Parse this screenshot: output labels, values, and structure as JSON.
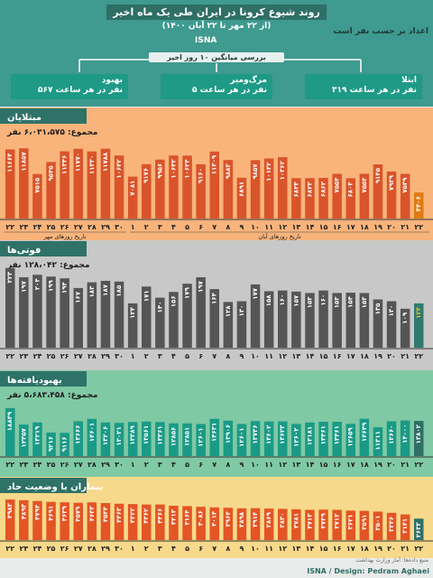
{
  "header": {
    "title": "روند شیوع کرونا در ایران طی یک ماه اخیر",
    "subtitle": "(از ۲۲ مهر تا ۲۲ آبان ۱۴۰۰)",
    "logo": "ISNA",
    "note": "اعداد بر حسب نفر است",
    "avg_label": "بررسی میانگین ۱۰ روز اخیر",
    "colors": {
      "header": "#3f9a8f",
      "title_band": "#2f6f66"
    }
  },
  "averages": [
    {
      "title": "بهبود",
      "value": "۵۶۷ نفر در هر ساعت",
      "color": "#1e9a86"
    },
    {
      "title": "مرگ‌ومیر",
      "value": "۵ نفر در هر ساعت",
      "color": "#1e9a86"
    },
    {
      "title": "ابتلا",
      "value": "۳۱۹ نفر در هر ساعت",
      "color": "#1e9a86"
    }
  ],
  "x_axis": {
    "labels": [
      "۲۲",
      "۲۳",
      "۲۴",
      "۲۵",
      "۲۶",
      "۲۷",
      "۲۸",
      "۲۹",
      "۳۰",
      "۱",
      "۲",
      "۳",
      "۴",
      "۵",
      "۶",
      "۷",
      "۸",
      "۹",
      "۱۰",
      "۱۱",
      "۱۲",
      "۱۳",
      "۱۴",
      "۱۵",
      "۱۶",
      "۱۷",
      "۱۸",
      "۱۹",
      "۲۰",
      "۲۱",
      "۲۲"
    ],
    "mehr_label": "تاریخ روزهای مهر",
    "aban_label": "تاریخ روزهای آبان"
  },
  "chart_data": [
    {
      "type": "bar",
      "title": "مبتلایان",
      "total": "مجموع: ۶،۰۳۱،۵۷۵ نفر",
      "bar_color": "#d9542a",
      "last_bar_color": "#e07b12",
      "bg_color": "#f9b47c",
      "title_color": "#2e7268",
      "categories": [
        "۲۲ مهر",
        "۲۳ مهر",
        "۲۴ مهر",
        "۲۵ مهر",
        "۲۶ مهر",
        "۲۷ مهر",
        "۲۸ مهر",
        "۲۹ مهر",
        "۳۰ مهر",
        "۱ آبان",
        "۲ آبان",
        "۳ آبان",
        "۴ آبان",
        "۵ آبان",
        "۶ آبان",
        "۷ آبان",
        "۸ آبان",
        "۹ آبان",
        "۱۰ آبان",
        "۱۱ آبان",
        "۱۲ آبان",
        "۱۳ آبان",
        "۱۴ آبان",
        "۱۵ آبان",
        "۱۶ آبان",
        "۱۷ آبان",
        "۱۸ آبان",
        "۱۹ آبان",
        "۲۰ آبان",
        "۲۱ آبان",
        "۲۲ آبان"
      ],
      "values": [
        11664,
        11857,
        7515,
        9545,
        11346,
        11770,
        11330,
        11788,
        10642,
        7081,
        9176,
        9956,
        10642,
        10624,
        9160,
        11309,
        9883,
        6891,
        9857,
        10142,
        10362,
        6823,
        6823,
        6862,
        7554,
        6803,
        7554,
        9145,
        7939,
        7539,
        4406
      ],
      "labels": [
        "۱۱۶۶۴",
        "۱۱۸۵۷",
        "۷۵۱۵",
        "۹۵۴۵",
        "۱۱۳۴۶",
        "۱۱۷۷۰",
        "۱۱۳۳۰",
        "۱۱۷۸۸",
        "۱۰۶۴۲",
        "۷۰۸۱",
        "۹۱۷۶",
        "۹۹۵۶",
        "۱۰۶۴۲",
        "۱۰۶۲۴",
        "۹۱۶۰",
        "۱۱۳۰۹",
        "۹۸۸۳",
        "۶۸۹۱",
        "۹۸۵۷",
        "۱۰۱۴۲",
        "۱۰۳۶۲",
        "۶۸۲۳",
        "۶۸۲۳",
        "۶۸۶۲",
        "۷۵۵۴",
        "۶۸۰۳",
        "۷۵۵۴",
        "۹۱۴۵",
        "۷۹۳۹",
        "۷۵۳۹",
        "۴۴۰۶"
      ],
      "ylim": [
        0,
        12500
      ]
    },
    {
      "type": "bar",
      "title": "فوتی‌ها",
      "total": "مجموع: ۱۲۸،۰۴۲ نفر",
      "bar_color": "#555555",
      "last_bar_color": "#2f7a70",
      "last_label_color": "#e8c13a",
      "bg_color": "#c8c8c8",
      "title_color": "#2e7268",
      "categories": [
        "۲۲ مهر",
        "۲۳ مهر",
        "۲۴ مهر",
        "۲۵ مهر",
        "۲۶ مهر",
        "۲۷ مهر",
        "۲۸ مهر",
        "۲۹ مهر",
        "۳۰ مهر",
        "۱ آبان",
        "۲ آبان",
        "۳ آبان",
        "۴ آبان",
        "۵ آبان",
        "۶ آبان",
        "۷ آبان",
        "۸ آبان",
        "۹ آبان",
        "۱۰ آبان",
        "۱۱ آبان",
        "۱۲ آبان",
        "۱۳ آبان",
        "۱۴ آبان",
        "۱۵ آبان",
        "۱۶ آبان",
        "۱۷ آبان",
        "۱۸ آبان",
        "۱۹ آبان",
        "۲۰ آبان",
        "۲۱ آبان",
        "۲۲ آبان"
      ],
      "values": [
        223,
        197,
        204,
        199,
        194,
        167,
        183,
        187,
        185,
        124,
        171,
        140,
        156,
        179,
        197,
        164,
        128,
        130,
        177,
        158,
        160,
        157,
        153,
        160,
        153,
        154,
        153,
        135,
        130,
        109,
        124
      ],
      "labels": [
        "۲۲۳",
        "۱۹۷",
        "۲۰۴",
        "۱۹۹",
        "۱۹۴",
        "۱۶۷",
        "۱۸۳",
        "۱۸۷",
        "۱۸۵",
        "۱۲۴",
        "۱۷۱",
        "۱۴۰",
        "۱۵۶",
        "۱۷۹",
        "۱۹۷",
        "۱۶۴",
        "۱۲۸",
        "۱۳۰",
        "۱۷۷",
        "۱۵۸",
        "۱۶۰",
        "۱۵۷",
        "۱۵۳",
        "۱۶۰",
        "۱۵۳",
        "۱۵۴",
        "۱۵۳",
        "۱۳۵",
        "۱۳۰",
        "۱۰۹",
        "۱۲۴"
      ],
      "ylim": [
        0,
        240
      ]
    },
    {
      "type": "bar",
      "title": "بهبودیافته‌ها",
      "total": "مجموع: ۵،۶۸۳،۴۵۸ نفر",
      "bar_color": "#1a9a86",
      "last_bar_color": "#2f6f66",
      "bg_color": "#7fc9a4",
      "title_color": "#2e7268",
      "categories": [
        "۲۲ مهر",
        "۲۳ مهر",
        "۲۴ مهر",
        "۲۵ مهر",
        "۲۶ مهر",
        "۲۷ مهر",
        "۲۸ مهر",
        "۲۹ مهر",
        "۳۰ مهر",
        "۱ آبان",
        "۲ آبان",
        "۳ آبان",
        "۴ آبان",
        "۵ آبان",
        "۶ آبان",
        "۷ آبان",
        "۸ آبان",
        "۹ آبان",
        "۱۰ آبان",
        "۱۱ آبان",
        "۱۲ آبان",
        "۱۳ آبان",
        "۱۴ آبان",
        "۱۵ آبان",
        "۱۶ آبان",
        "۱۷ آبان",
        "۱۸ آبان",
        "۱۹ آبان",
        "۲۰ آبان",
        "۲۱ آبان",
        "۲۲ آبان"
      ],
      "values": [
        18849,
        12357,
        13219,
        9216,
        9116,
        13666,
        14601,
        13206,
        13021,
        13389,
        13561,
        13361,
        12856,
        12851,
        12601,
        14631,
        13906,
        12601,
        13736,
        13602,
        13623,
        12602,
        13181,
        13461,
        13461,
        12659,
        14649,
        11311,
        13660,
        14000,
        13802
      ],
      "labels": [
        "۱۸۸۴۹",
        "۱۲۳۵۷",
        "۱۳۲۱۹",
        "۹۲۱۶",
        "۹۱۱۶",
        "۱۳۶۶۶",
        "۱۴۶۰۱",
        "۱۳۲۰۶",
        "۱۳۰۲۱",
        "۱۳۳۸۹",
        "۱۳۵۶۱",
        "۱۳۳۶۱",
        "۱۲۸۵۶",
        "۱۲۸۵۱",
        "۱۲۶۰۱",
        "۱۴۶۳۱",
        "۱۳۹۰۶",
        "۱۲۶۰۱",
        "۱۳۷۳۶",
        "۱۳۶۰۲",
        "۱۳۶۲۳",
        "۱۲۶۰۲",
        "۱۳۱۸۱",
        "۱۳۴۶۱",
        "۱۳۴۶۱",
        "۱۲۶۵۹",
        "۱۴۶۴۹",
        "۱۱۳۱۱",
        "۱۳۶۶۰",
        "۱۴۰۰۰",
        "۱۳۸۰۲"
      ],
      "ylim": [
        0,
        19500
      ]
    },
    {
      "type": "bar",
      "title": "بیماران با وضعیت حاد",
      "total": "",
      "bar_color": "#e35524",
      "last_bar_color": "#2f6f66",
      "bg_color": "#f7d98b",
      "title_color": "#2e7268",
      "categories": [
        "۲۲ مهر",
        "۲۳ مهر",
        "۲۴ مهر",
        "۲۵ مهر",
        "۲۶ مهر",
        "۲۷ مهر",
        "۲۸ مهر",
        "۲۹ مهر",
        "۳۰ مهر",
        "۱ آبان",
        "۲ آبان",
        "۳ آبان",
        "۴ آبان",
        "۵ آبان",
        "۶ آبان",
        "۷ آبان",
        "۸ آبان",
        "۹ آبان",
        "۱۰ آبان",
        "۱۱ آبان",
        "۱۲ آبان",
        "۱۳ آبان",
        "۱۴ آبان",
        "۱۵ آبان",
        "۱۶ آبان",
        "۱۷ آبان",
        "۱۸ آبان",
        "۱۹ آبان",
        "۲۰ آبان",
        "۲۱ آبان",
        "۲۲ آبان"
      ],
      "values": [
        4983,
        4893,
        4794,
        4691,
        4639,
        4579,
        4633,
        4544,
        4463,
        4422,
        4362,
        4366,
        4213,
        4164,
        4086,
        4014,
        3964,
        3898,
        3914,
        3869,
        3830,
        3781,
        3713,
        3739,
        3713,
        3621,
        3591,
        3501,
        3346,
        3141,
        2633
      ],
      "labels": [
        "۴۹۸۳",
        "۴۸۹۳",
        "۴۷۹۴",
        "۴۶۹۱",
        "۴۶۳۹",
        "۴۵۷۹",
        "۴۶۳۳",
        "۴۵۴۴",
        "۴۴۶۳",
        "۴۴۲۲",
        "۴۳۶۲",
        "۴۳۶۶",
        "۴۲۱۳",
        "۴۱۶۴",
        "۴۰۸۶",
        "۴۰۱۴",
        "۳۹۶۴",
        "۳۸۹۸",
        "۳۹۱۴",
        "۳۸۶۹",
        "۳۸۳۰",
        "۳۷۸۱",
        "۳۷۱۳",
        "۳۷۳۹",
        "۳۷۱۳",
        "۳۶۲۱",
        "۳۵۹۱",
        "۳۵۰۱",
        "۳۳۴۶",
        "۳۱۴۱",
        "۲۶۳۳"
      ],
      "ylim": [
        0,
        5100
      ]
    }
  ],
  "footer": {
    "source": "منبع داده‌ها: آمار وزارت بهداشت",
    "credit": "ISNA / Design: Pedram Aghaei"
  }
}
